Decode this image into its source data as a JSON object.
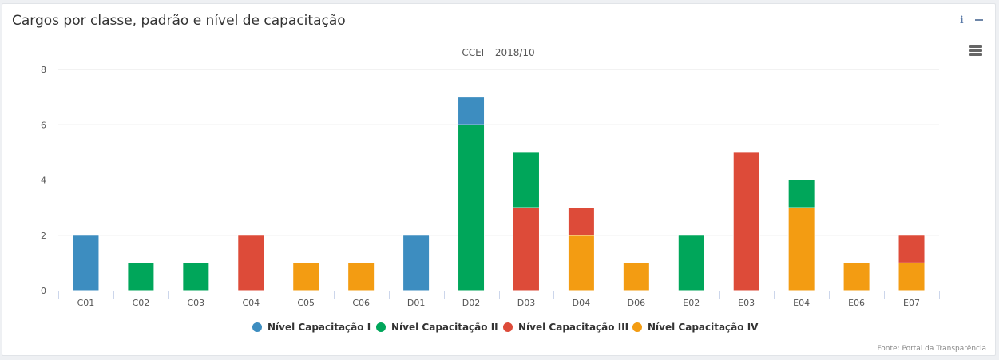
{
  "panel": {
    "title": "Cargos por classe, padrão e nível de capacitação",
    "info_icon": "i",
    "source": "Fonte: Portal da Transparência"
  },
  "icons": {
    "info": "info-icon",
    "minimize": "minimize-icon",
    "menu": "hamburger-menu-icon"
  },
  "chart_data": {
    "type": "bar",
    "stacked": true,
    "title": "CCEI – 2018/10",
    "xlabel": "",
    "ylabel": "",
    "ylim": [
      0,
      8
    ],
    "yticks": [
      0,
      2,
      4,
      6,
      8
    ],
    "grid": true,
    "legend_position": "bottom-center",
    "categories": [
      "C01",
      "C02",
      "C03",
      "C04",
      "C05",
      "C06",
      "D01",
      "D02",
      "D03",
      "D04",
      "D06",
      "E02",
      "E03",
      "E04",
      "E06",
      "E07"
    ],
    "series": [
      {
        "name": "Nível Capacitação I",
        "color": "#3d8dc0",
        "values": [
          2,
          0,
          0,
          0,
          0,
          0,
          2,
          1,
          0,
          0,
          0,
          0,
          0,
          0,
          0,
          0
        ]
      },
      {
        "name": "Nível Capacitação II",
        "color": "#00a65a",
        "values": [
          0,
          1,
          1,
          0,
          0,
          0,
          0,
          6,
          2,
          0,
          0,
          2,
          0,
          1,
          0,
          0
        ]
      },
      {
        "name": "Nível Capacitação III",
        "color": "#dd4b39",
        "values": [
          0,
          0,
          0,
          2,
          0,
          0,
          0,
          0,
          3,
          1,
          0,
          0,
          5,
          0,
          0,
          1
        ]
      },
      {
        "name": "Nível Capacitação IV",
        "color": "#f39c12",
        "values": [
          0,
          0,
          0,
          0,
          1,
          1,
          0,
          0,
          0,
          2,
          1,
          0,
          0,
          3,
          1,
          1
        ]
      }
    ]
  }
}
